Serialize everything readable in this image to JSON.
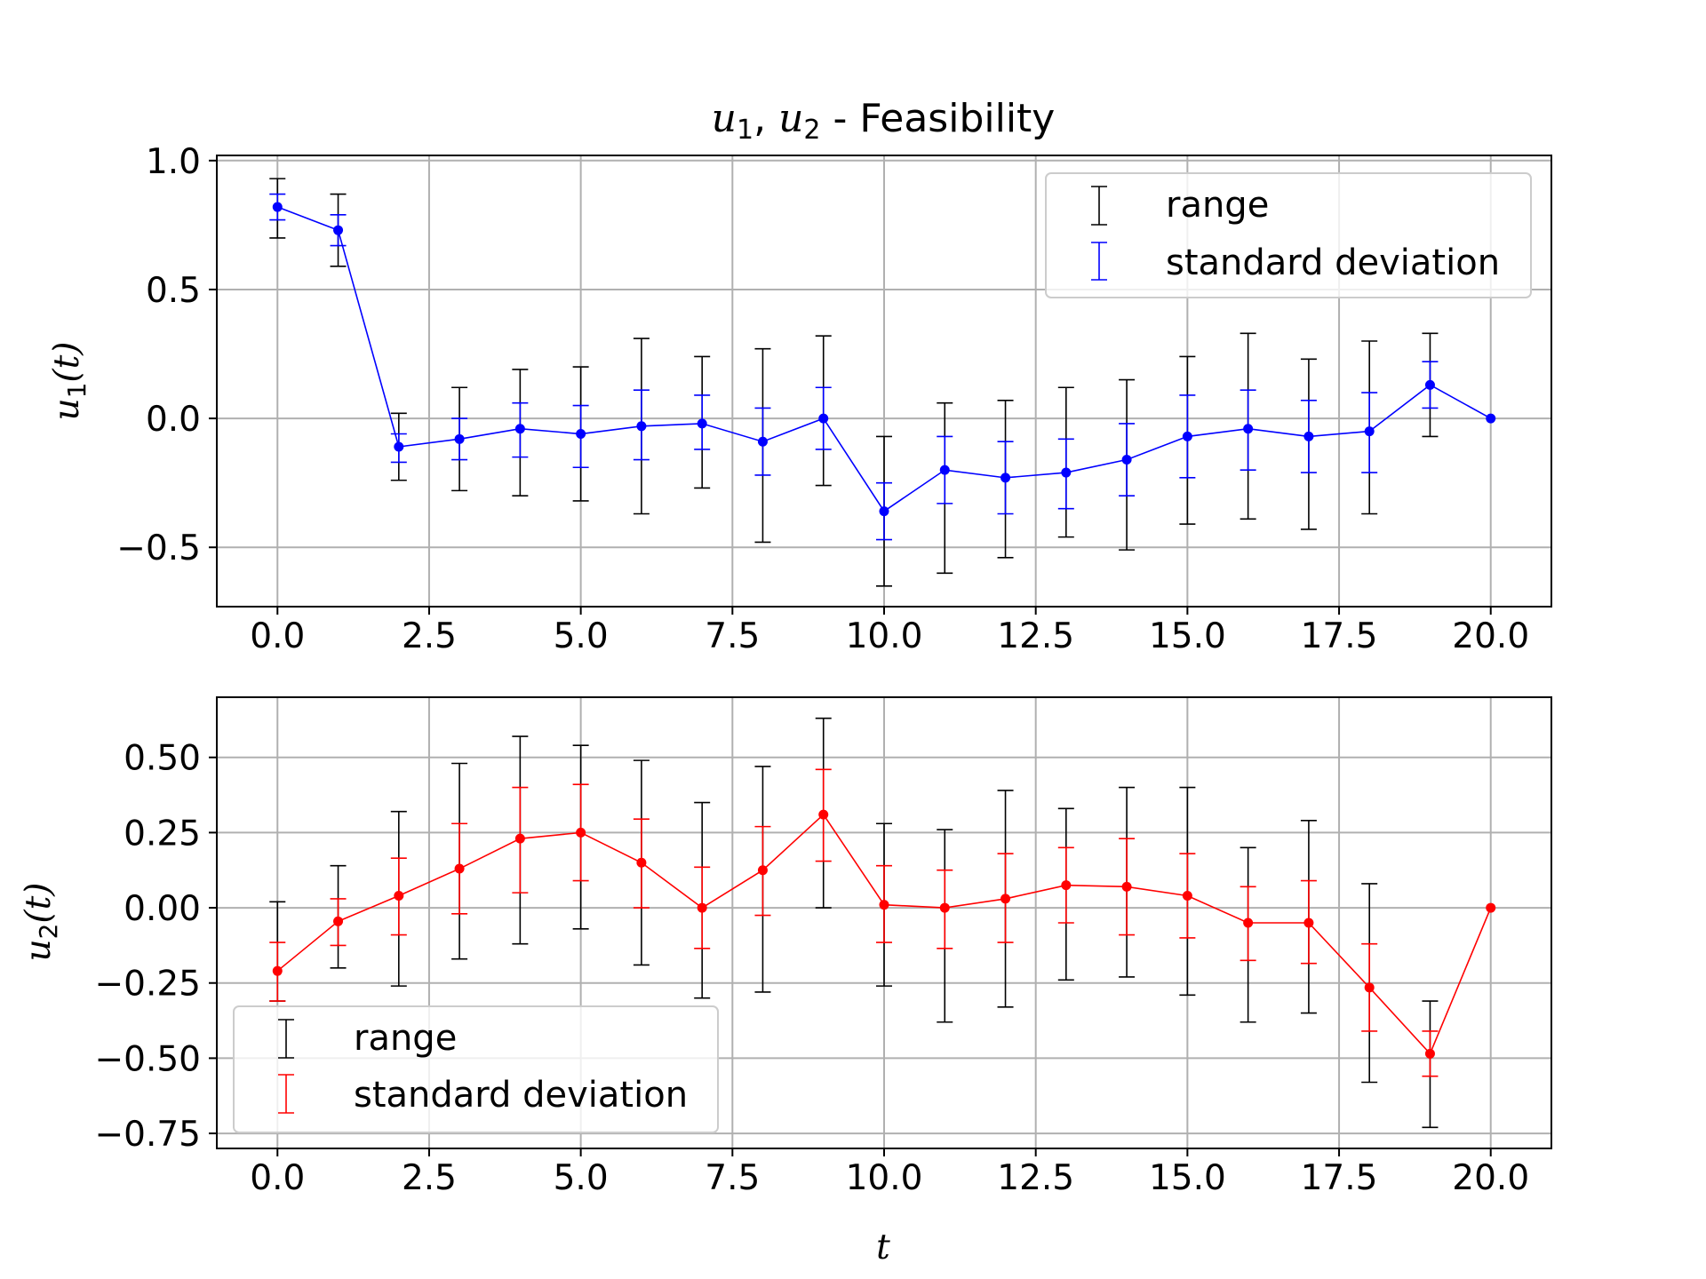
{
  "title_parts": {
    "u1": "u",
    "sub1": "1",
    "comma": ", ",
    "u2": "u",
    "sub2": "2",
    "rest": " - Feasibility"
  },
  "colors": {
    "range": "#000000",
    "top_series": "#0000ff",
    "bottom_series": "#ff0000",
    "grid": "#b0b0b0"
  },
  "chart_data": [
    {
      "type": "line",
      "ylabel_parts": {
        "u": "u",
        "sub": "1",
        "rest": "(t)"
      },
      "xlabel": "t",
      "xlim": [
        -1,
        21
      ],
      "ylim": [
        -0.73,
        1.02
      ],
      "xticks": [
        0,
        2.5,
        5,
        7.5,
        10,
        12.5,
        15,
        17.5,
        20
      ],
      "xtick_labels": [
        "0.0",
        "2.5",
        "5.0",
        "7.5",
        "10.0",
        "12.5",
        "15.0",
        "17.5",
        "20.0"
      ],
      "yticks": [
        1.0,
        0.5,
        0.0,
        -0.5
      ],
      "ytick_labels": [
        "1.0",
        "0.5",
        "0.0",
        "−0.5"
      ],
      "grid": true,
      "legend_position": "upper right",
      "legend": [
        "range",
        "standard deviation"
      ],
      "x": [
        0,
        1,
        2,
        3,
        4,
        5,
        6,
        7,
        8,
        9,
        10,
        11,
        12,
        13,
        14,
        15,
        16,
        17,
        18,
        19,
        20
      ],
      "y": [
        0.82,
        0.73,
        -0.11,
        -0.08,
        -0.04,
        -0.06,
        -0.03,
        -0.02,
        -0.09,
        0.0,
        -0.36,
        -0.2,
        -0.23,
        -0.21,
        -0.16,
        -0.07,
        -0.04,
        -0.07,
        -0.05,
        0.13,
        0.0
      ],
      "range_low": [
        0.7,
        0.59,
        -0.24,
        -0.28,
        -0.3,
        -0.32,
        -0.37,
        -0.27,
        -0.48,
        -0.26,
        -0.65,
        -0.6,
        -0.54,
        -0.46,
        -0.51,
        -0.41,
        -0.39,
        -0.43,
        -0.37,
        -0.07,
        0.0
      ],
      "range_high": [
        0.93,
        0.87,
        0.02,
        0.12,
        0.19,
        0.2,
        0.31,
        0.24,
        0.27,
        0.32,
        -0.07,
        0.06,
        0.07,
        0.12,
        0.15,
        0.24,
        0.33,
        0.23,
        0.3,
        0.33,
        0.0
      ],
      "std_low": [
        0.77,
        0.67,
        -0.17,
        -0.16,
        -0.15,
        -0.19,
        -0.16,
        -0.12,
        -0.22,
        -0.12,
        -0.47,
        -0.33,
        -0.37,
        -0.35,
        -0.3,
        -0.23,
        -0.2,
        -0.21,
        -0.21,
        0.04,
        0.0
      ],
      "std_high": [
        0.87,
        0.79,
        -0.06,
        0.0,
        0.06,
        0.05,
        0.11,
        0.09,
        0.04,
        0.12,
        -0.25,
        -0.07,
        -0.09,
        -0.08,
        -0.02,
        0.09,
        0.11,
        0.07,
        0.1,
        0.22,
        0.0
      ]
    },
    {
      "type": "line",
      "ylabel_parts": {
        "u": "u",
        "sub": "2",
        "rest": "(t)"
      },
      "xlabel": "t",
      "xlim": [
        -1,
        21
      ],
      "ylim": [
        -0.8,
        0.7
      ],
      "xticks": [
        0,
        2.5,
        5,
        7.5,
        10,
        12.5,
        15,
        17.5,
        20
      ],
      "xtick_labels": [
        "0.0",
        "2.5",
        "5.0",
        "7.5",
        "10.0",
        "12.5",
        "15.0",
        "17.5",
        "20.0"
      ],
      "yticks": [
        0.5,
        0.25,
        0.0,
        -0.25,
        -0.5,
        -0.75
      ],
      "ytick_labels": [
        "0.50",
        "0.25",
        "0.00",
        "−0.25",
        "−0.50",
        "−0.75"
      ],
      "grid": true,
      "legend_position": "lower left",
      "legend": [
        "range",
        "standard deviation"
      ],
      "x": [
        0,
        1,
        2,
        3,
        4,
        5,
        6,
        7,
        8,
        9,
        10,
        11,
        12,
        13,
        14,
        15,
        16,
        17,
        18,
        19,
        20
      ],
      "y": [
        -0.21,
        -0.045,
        0.04,
        0.13,
        0.23,
        0.25,
        0.15,
        0.0,
        0.125,
        0.31,
        0.01,
        0.0,
        0.03,
        0.075,
        0.07,
        0.04,
        -0.05,
        -0.05,
        -0.265,
        -0.485,
        0.0
      ],
      "range_low": [
        -0.31,
        -0.2,
        -0.26,
        -0.17,
        -0.12,
        -0.07,
        -0.19,
        -0.3,
        -0.28,
        0.0,
        -0.26,
        -0.38,
        -0.33,
        -0.24,
        -0.23,
        -0.29,
        -0.38,
        -0.35,
        -0.58,
        -0.73,
        0.0
      ],
      "range_high": [
        0.02,
        0.14,
        0.32,
        0.48,
        0.57,
        0.54,
        0.49,
        0.35,
        0.47,
        0.63,
        0.28,
        0.26,
        0.39,
        0.33,
        0.4,
        0.4,
        0.2,
        0.29,
        0.08,
        -0.31,
        0.0
      ],
      "std_low": [
        -0.31,
        -0.125,
        -0.09,
        -0.02,
        0.05,
        0.09,
        0.0,
        -0.135,
        -0.025,
        0.155,
        -0.115,
        -0.135,
        -0.115,
        -0.05,
        -0.09,
        -0.1,
        -0.175,
        -0.185,
        -0.41,
        -0.56,
        0.0
      ],
      "std_high": [
        -0.115,
        0.03,
        0.165,
        0.28,
        0.4,
        0.41,
        0.295,
        0.135,
        0.27,
        0.46,
        0.14,
        0.125,
        0.18,
        0.2,
        0.23,
        0.18,
        0.07,
        0.09,
        -0.12,
        -0.41,
        0.0
      ]
    }
  ]
}
